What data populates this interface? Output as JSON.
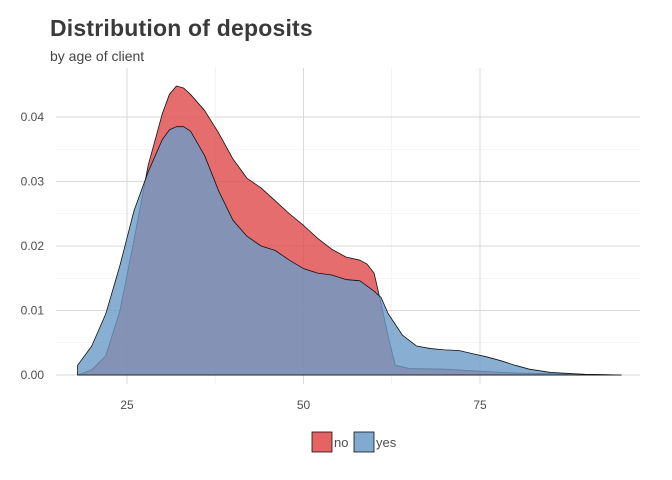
{
  "chart_data": {
    "type": "area",
    "title": "Distribution of deposits",
    "subtitle": "by age of client",
    "xlabel": "",
    "ylabel": "",
    "xlim": [
      18,
      95
    ],
    "ylim": [
      0,
      0.045
    ],
    "x_ticks": [
      25,
      50,
      75
    ],
    "y_ticks": [
      0.0,
      0.01,
      0.02,
      0.03,
      0.04
    ],
    "x_tick_labels": [
      "25",
      "50",
      "75"
    ],
    "y_tick_labels": [
      "0.00",
      "0.01",
      "0.02",
      "0.03",
      "0.04"
    ],
    "grid": true,
    "legend_position": "bottom",
    "series": [
      {
        "name": "no",
        "color": "#e04848",
        "x": [
          18,
          20,
          22,
          24,
          26,
          28,
          30,
          31,
          32,
          33,
          34,
          36,
          38,
          40,
          42,
          44,
          46,
          48,
          50,
          52,
          54,
          56,
          58,
          59,
          60,
          61,
          62,
          63,
          65,
          70,
          75,
          80,
          85,
          90,
          95
        ],
        "values": [
          0.0,
          0.0008,
          0.003,
          0.01,
          0.021,
          0.0325,
          0.0405,
          0.0435,
          0.0448,
          0.0445,
          0.0435,
          0.041,
          0.0375,
          0.0335,
          0.0305,
          0.029,
          0.027,
          0.025,
          0.0232,
          0.0212,
          0.0195,
          0.0183,
          0.0178,
          0.0172,
          0.0158,
          0.011,
          0.006,
          0.0015,
          0.001,
          0.0009,
          0.0006,
          0.0003,
          0.0002,
          0.0001,
          0.0
        ]
      },
      {
        "name": "yes",
        "color": "#6a9bc7",
        "x": [
          18,
          20,
          22,
          24,
          26,
          28,
          30,
          31,
          32,
          33,
          34,
          36,
          38,
          40,
          42,
          44,
          46,
          48,
          50,
          52,
          54,
          56,
          58,
          60,
          61,
          62,
          64,
          66,
          68,
          70,
          72,
          74,
          76,
          78,
          80,
          82,
          85,
          90,
          95
        ],
        "values": [
          0.0015,
          0.0045,
          0.0095,
          0.017,
          0.0255,
          0.0315,
          0.0365,
          0.038,
          0.0385,
          0.0385,
          0.0378,
          0.034,
          0.0285,
          0.024,
          0.0215,
          0.02,
          0.0193,
          0.0178,
          0.0165,
          0.0158,
          0.0155,
          0.0148,
          0.0146,
          0.013,
          0.012,
          0.0095,
          0.0062,
          0.0045,
          0.0041,
          0.0039,
          0.0038,
          0.0033,
          0.0028,
          0.0022,
          0.0015,
          0.0009,
          0.0004,
          0.0001,
          0.0
        ]
      }
    ]
  },
  "legend": {
    "items": [
      {
        "label": "no",
        "color": "#e04848"
      },
      {
        "label": "yes",
        "color": "#6a9bc7"
      }
    ]
  }
}
